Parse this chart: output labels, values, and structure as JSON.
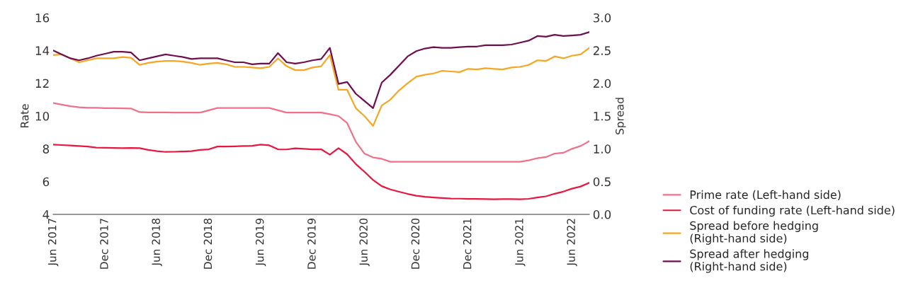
{
  "chart_data": {
    "type": "line",
    "ylabel": "Rate",
    "y2label": "Spread",
    "categories": [
      "Jun 2017",
      null,
      null,
      null,
      null,
      null,
      "Dec 2017",
      null,
      null,
      null,
      null,
      null,
      "Jun 2018",
      null,
      null,
      null,
      null,
      null,
      "Dec 2018",
      null,
      null,
      null,
      null,
      null,
      "Jun 2019",
      null,
      null,
      null,
      null,
      null,
      "Dec 2019",
      null,
      null,
      null,
      null,
      null,
      "Jun 2020",
      null,
      null,
      null,
      null,
      null,
      "Dec 2020",
      null,
      null,
      null,
      null,
      null,
      "Dec 2021",
      null,
      null,
      null,
      null,
      null,
      "Jun 2021",
      null,
      null,
      null,
      null,
      null,
      "Jun 2022",
      null,
      null
    ],
    "ylim": [
      4,
      16
    ],
    "yticks": [
      4,
      6,
      8,
      10,
      12,
      14,
      16
    ],
    "y2lim": [
      0,
      3
    ],
    "y2ticks": [
      {
        "value": 0,
        "label": "0.0"
      },
      {
        "value": 0.5,
        "label": "0.5"
      },
      {
        "value": 1,
        "label": "1.0"
      },
      {
        "value": 1.5,
        "label": "1.5"
      },
      {
        "value": 2,
        "label": "2.0"
      },
      {
        "value": 2.5,
        "label": "2.5"
      },
      {
        "value": 3,
        "label": "3.0"
      }
    ],
    "grid": false,
    "legend": "bottom right",
    "line_style": "solid",
    "marker": "none",
    "series": [
      {
        "name": "Prime rate (Left-hand side)",
        "color": "#f0708a",
        "values": [
          10.79,
          10.7,
          10.6,
          10.53,
          10.5,
          10.5,
          10.48,
          10.48,
          10.47,
          10.46,
          10.24,
          10.22,
          10.22,
          10.22,
          10.21,
          10.21,
          10.21,
          10.21,
          10.35,
          10.49,
          10.49,
          10.49,
          10.49,
          10.49,
          10.49,
          10.49,
          10.35,
          10.21,
          10.21,
          10.21,
          10.21,
          10.21,
          10.11,
          10.0,
          9.57,
          8.43,
          7.71,
          7.47,
          7.39,
          7.21,
          7.21,
          7.21,
          7.21,
          7.21,
          7.21,
          7.21,
          7.21,
          7.21,
          7.21,
          7.21,
          7.21,
          7.21,
          7.21,
          7.21,
          7.21,
          7.3,
          7.43,
          7.5,
          7.71,
          7.76,
          8.0,
          8.17,
          8.47
        ]
      },
      {
        "name": "Cost of funding rate (Left-hand side)",
        "color": "#e8173f",
        "values": [
          8.26,
          8.23,
          8.2,
          8.17,
          8.14,
          8.07,
          8.06,
          8.05,
          8.04,
          8.05,
          8.04,
          7.93,
          7.86,
          7.81,
          7.82,
          7.84,
          7.86,
          7.93,
          7.97,
          8.14,
          8.14,
          8.15,
          8.17,
          8.18,
          8.26,
          8.21,
          7.97,
          7.96,
          8.03,
          8.0,
          7.97,
          7.97,
          7.64,
          8.04,
          7.67,
          7.07,
          6.6,
          6.1,
          5.72,
          5.52,
          5.38,
          5.25,
          5.14,
          5.07,
          5.03,
          5.0,
          4.97,
          4.96,
          4.94,
          4.94,
          4.93,
          4.92,
          4.93,
          4.93,
          4.92,
          4.95,
          5.03,
          5.1,
          5.26,
          5.39,
          5.57,
          5.7,
          5.93
        ]
      },
      {
        "name": "Spread before hedging\n(Right-hand side)",
        "color": "#f5a623",
        "axis": "y2",
        "values": [
          2.43,
          2.44,
          2.38,
          2.32,
          2.35,
          2.38,
          2.38,
          2.38,
          2.4,
          2.39,
          2.28,
          2.31,
          2.33,
          2.34,
          2.34,
          2.33,
          2.31,
          2.28,
          2.3,
          2.31,
          2.29,
          2.25,
          2.25,
          2.24,
          2.23,
          2.25,
          2.38,
          2.26,
          2.2,
          2.2,
          2.24,
          2.26,
          2.43,
          1.9,
          1.9,
          1.62,
          1.5,
          1.35,
          1.66,
          1.75,
          1.89,
          2.0,
          2.1,
          2.13,
          2.15,
          2.19,
          2.18,
          2.17,
          2.22,
          2.21,
          2.23,
          2.22,
          2.21,
          2.24,
          2.25,
          2.28,
          2.35,
          2.34,
          2.41,
          2.38,
          2.42,
          2.44,
          2.54
        ]
      },
      {
        "name": "Spread after hedging\n(Right-hand side)",
        "color": "#6e0f4f",
        "axis": "y2",
        "values": [
          2.5,
          2.44,
          2.38,
          2.35,
          2.38,
          2.42,
          2.45,
          2.48,
          2.48,
          2.47,
          2.35,
          2.38,
          2.41,
          2.44,
          2.42,
          2.4,
          2.37,
          2.38,
          2.38,
          2.38,
          2.35,
          2.32,
          2.32,
          2.29,
          2.3,
          2.3,
          2.46,
          2.32,
          2.3,
          2.32,
          2.35,
          2.37,
          2.54,
          1.99,
          2.02,
          1.84,
          1.73,
          1.62,
          2.01,
          2.13,
          2.27,
          2.41,
          2.49,
          2.53,
          2.55,
          2.54,
          2.54,
          2.55,
          2.56,
          2.56,
          2.58,
          2.58,
          2.58,
          2.59,
          2.62,
          2.65,
          2.72,
          2.71,
          2.74,
          2.72,
          2.73,
          2.74,
          2.78
        ]
      }
    ]
  }
}
